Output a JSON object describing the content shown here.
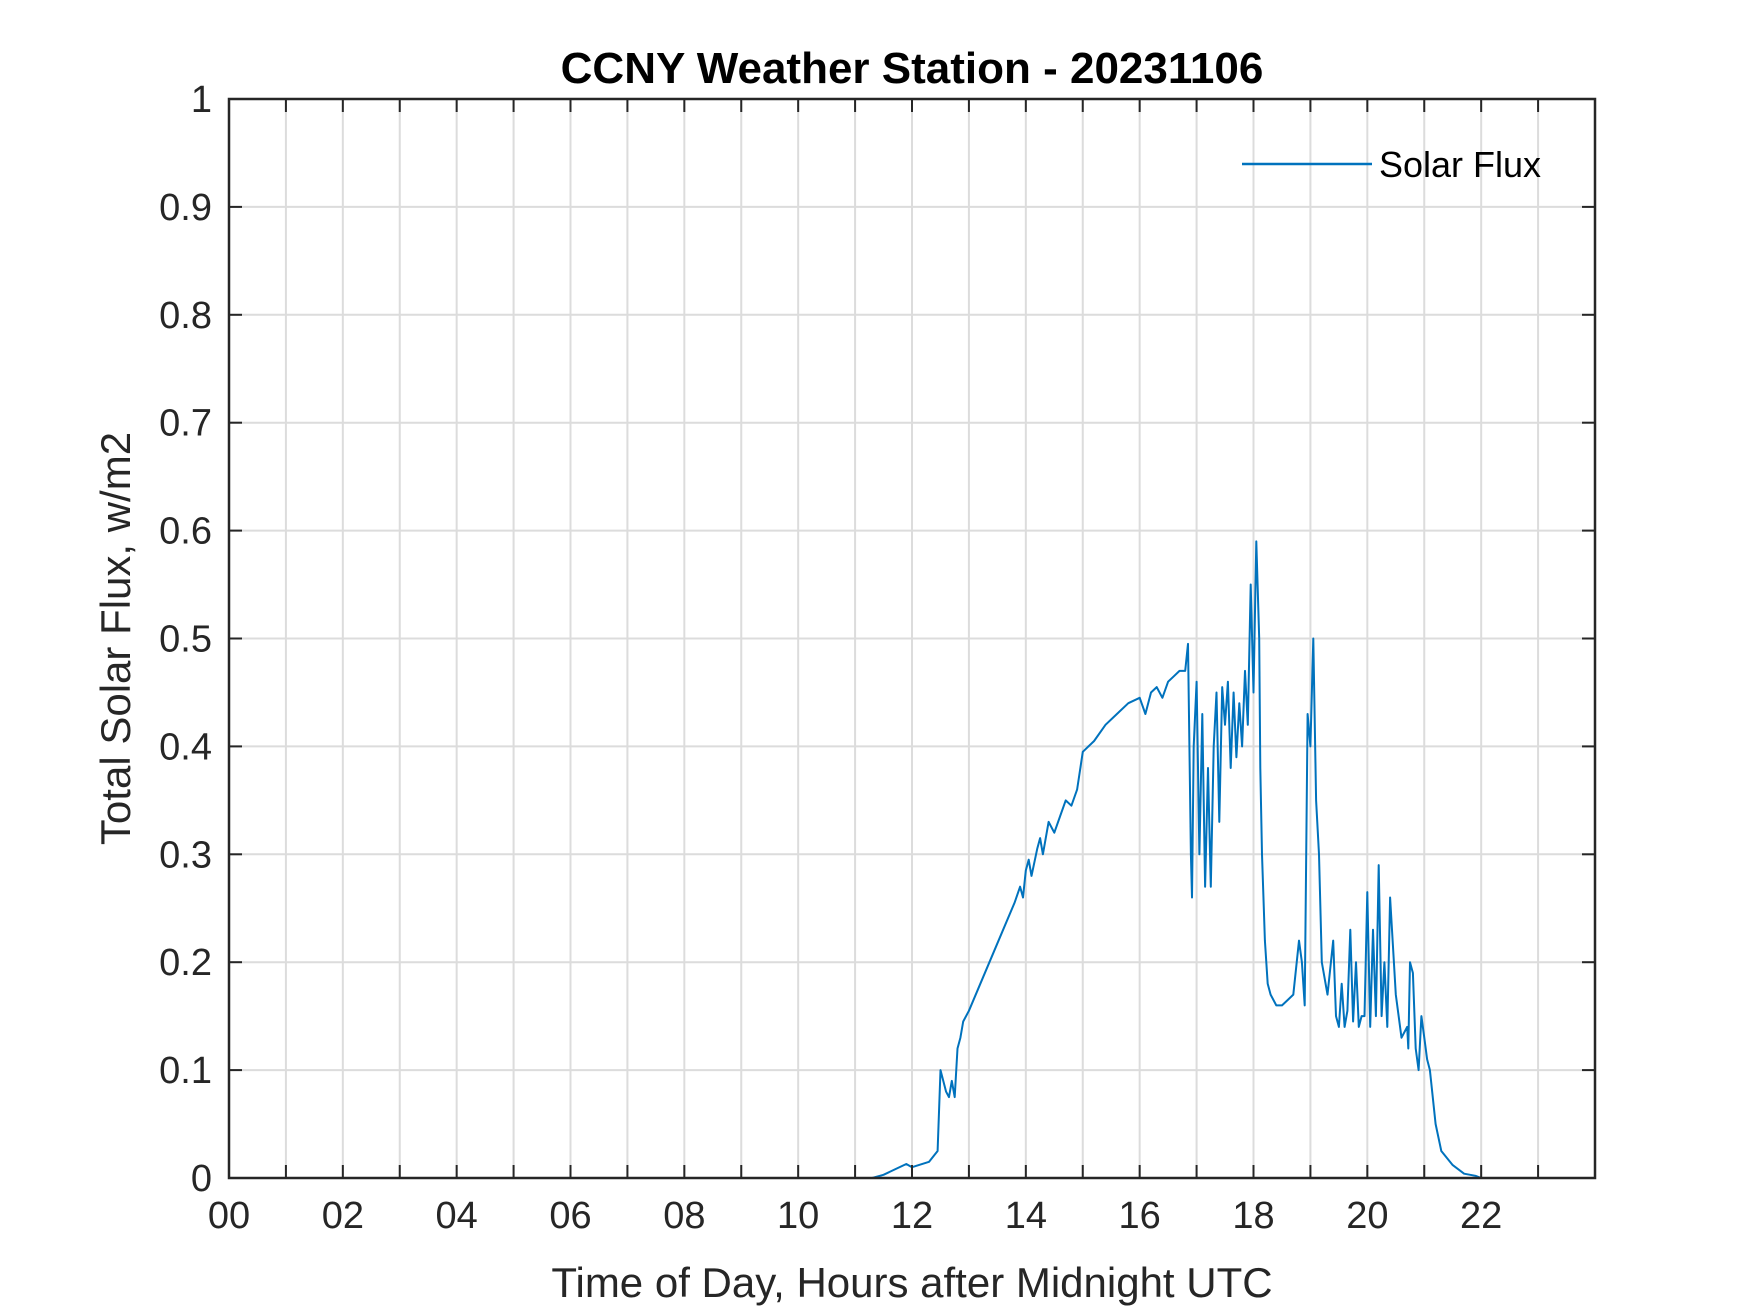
{
  "chart_data": {
    "type": "line",
    "title": "CCNY Weather Station - 20231106",
    "xlabel": "Time of Day, Hours after Midnight UTC",
    "ylabel": "Total Solar Flux, w/m2",
    "xlim": [
      0,
      24
    ],
    "ylim": [
      0,
      1
    ],
    "x_ticks": [
      0,
      2,
      4,
      6,
      8,
      10,
      12,
      14,
      16,
      18,
      20,
      22
    ],
    "x_tick_labels": [
      "00",
      "02",
      "04",
      "06",
      "08",
      "10",
      "12",
      "14",
      "16",
      "18",
      "20",
      "22"
    ],
    "x_grid": [
      0,
      1,
      2,
      3,
      4,
      5,
      6,
      7,
      8,
      9,
      10,
      11,
      12,
      13,
      14,
      15,
      16,
      17,
      18,
      19,
      20,
      21,
      22,
      23,
      24
    ],
    "y_ticks": [
      0,
      0.1,
      0.2,
      0.3,
      0.4,
      0.5,
      0.6,
      0.7,
      0.8,
      0.9,
      1
    ],
    "y_tick_labels": [
      "0",
      "0.1",
      "0.2",
      "0.3",
      "0.4",
      "0.5",
      "0.6",
      "0.7",
      "0.8",
      "0.9",
      "1"
    ],
    "grid": true,
    "legend_position": "top-right",
    "series": [
      {
        "name": "Solar Flux",
        "color": "#0072bd",
        "x": [
          0,
          11.3,
          11.5,
          11.7,
          11.9,
          12.0,
          12.3,
          12.45,
          12.5,
          12.6,
          12.65,
          12.7,
          12.75,
          12.8,
          12.85,
          12.9,
          13.0,
          13.2,
          13.4,
          13.6,
          13.8,
          13.9,
          13.95,
          14.0,
          14.05,
          14.1,
          14.2,
          14.25,
          14.3,
          14.4,
          14.5,
          14.6,
          14.7,
          14.8,
          14.9,
          15.0,
          15.2,
          15.4,
          15.6,
          15.8,
          16.0,
          16.1,
          16.2,
          16.3,
          16.4,
          16.5,
          16.6,
          16.7,
          16.8,
          16.85,
          16.9,
          16.92,
          16.95,
          17.0,
          17.05,
          17.1,
          17.15,
          17.2,
          17.25,
          17.3,
          17.35,
          17.4,
          17.45,
          17.5,
          17.55,
          17.6,
          17.65,
          17.7,
          17.75,
          17.8,
          17.85,
          17.9,
          17.95,
          18.0,
          18.05,
          18.1,
          18.12,
          18.15,
          18.2,
          18.25,
          18.3,
          18.4,
          18.5,
          18.6,
          18.7,
          18.8,
          18.85,
          18.9,
          18.95,
          19.0,
          19.05,
          19.1,
          19.15,
          19.2,
          19.3,
          19.4,
          19.45,
          19.5,
          19.55,
          19.6,
          19.65,
          19.7,
          19.75,
          19.8,
          19.85,
          19.9,
          19.95,
          20.0,
          20.05,
          20.1,
          20.15,
          20.2,
          20.25,
          20.3,
          20.35,
          20.4,
          20.5,
          20.6,
          20.7,
          20.72,
          20.75,
          20.8,
          20.85,
          20.9,
          20.95,
          21.0,
          21.05,
          21.1,
          21.2,
          21.3,
          21.5,
          21.7,
          21.9,
          22.0,
          22.2,
          23.9
        ],
        "y": [
          0,
          0,
          0.003,
          0.008,
          0.013,
          0.01,
          0.015,
          0.025,
          0.1,
          0.08,
          0.075,
          0.09,
          0.075,
          0.12,
          0.13,
          0.145,
          0.155,
          0.18,
          0.205,
          0.23,
          0.255,
          0.27,
          0.26,
          0.285,
          0.295,
          0.28,
          0.305,
          0.315,
          0.3,
          0.33,
          0.32,
          0.335,
          0.35,
          0.345,
          0.36,
          0.395,
          0.405,
          0.42,
          0.43,
          0.44,
          0.445,
          0.43,
          0.45,
          0.455,
          0.445,
          0.46,
          0.465,
          0.47,
          0.47,
          0.495,
          0.3,
          0.26,
          0.4,
          0.46,
          0.3,
          0.43,
          0.27,
          0.38,
          0.27,
          0.4,
          0.45,
          0.33,
          0.455,
          0.42,
          0.46,
          0.38,
          0.45,
          0.39,
          0.44,
          0.4,
          0.47,
          0.42,
          0.55,
          0.45,
          0.59,
          0.5,
          0.38,
          0.3,
          0.22,
          0.18,
          0.17,
          0.16,
          0.16,
          0.165,
          0.17,
          0.22,
          0.2,
          0.16,
          0.43,
          0.4,
          0.5,
          0.35,
          0.3,
          0.2,
          0.17,
          0.22,
          0.15,
          0.14,
          0.18,
          0.14,
          0.155,
          0.23,
          0.145,
          0.2,
          0.14,
          0.15,
          0.15,
          0.265,
          0.14,
          0.23,
          0.15,
          0.29,
          0.15,
          0.2,
          0.14,
          0.26,
          0.17,
          0.13,
          0.14,
          0.12,
          0.2,
          0.19,
          0.12,
          0.1,
          0.15,
          0.13,
          0.11,
          0.1,
          0.05,
          0.025,
          0.012,
          0.004,
          0.002,
          0,
          0,
          0
        ]
      }
    ]
  }
}
